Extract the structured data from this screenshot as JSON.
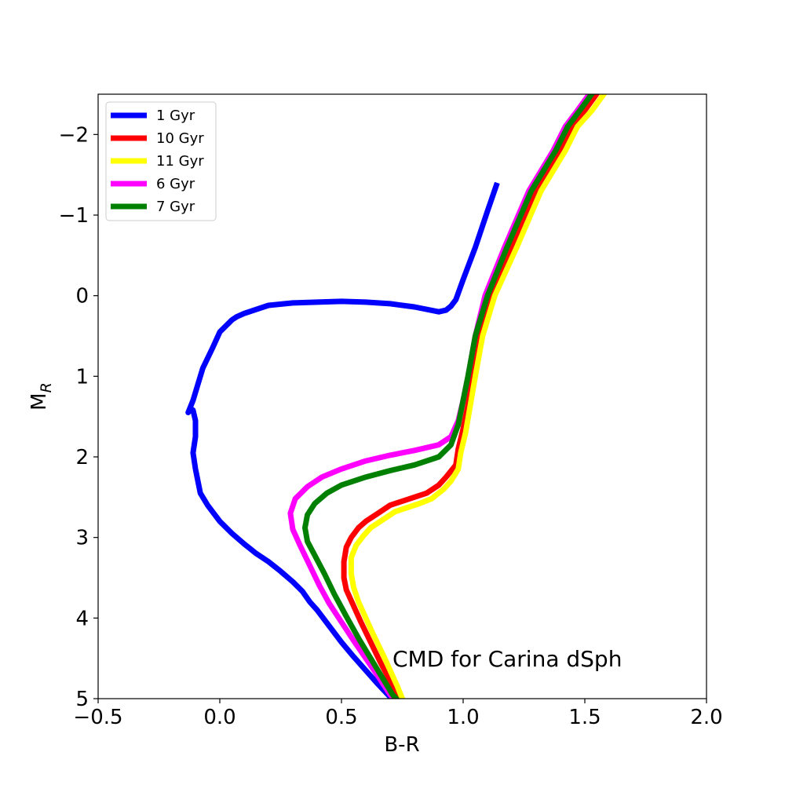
{
  "chart_data": {
    "type": "line",
    "title": "",
    "xlabel": "B-R",
    "ylabel": "M",
    "ylabel_subscript": "R",
    "xlim": [
      -0.5,
      2.0
    ],
    "ylim": [
      5,
      -2.5
    ],
    "y_inverted": true,
    "grid": false,
    "legend_placement": "top-left",
    "x_ticks": [
      -0.5,
      0.0,
      0.5,
      1.0,
      1.5,
      2.0
    ],
    "x_tick_labels": [
      "−0.5",
      "0.0",
      "0.5",
      "1.0",
      "1.5",
      "2.0"
    ],
    "y_ticks": [
      -2,
      -1,
      0,
      1,
      2,
      3,
      4,
      5
    ],
    "y_tick_labels": [
      "−2",
      "−1",
      "0",
      "1",
      "2",
      "3",
      "4",
      "5"
    ],
    "annotation": "CMD for Carina dSph",
    "series": [
      {
        "name": "1 Gyr",
        "color": "#0000ff",
        "x": [
          1.14,
          1.1,
          1.05,
          1.0,
          0.97,
          0.95,
          0.93,
          0.9,
          0.8,
          0.7,
          0.6,
          0.5,
          0.4,
          0.3,
          0.2,
          0.1,
          0.07,
          0.05,
          0.0,
          -0.03,
          -0.07,
          -0.09,
          -0.11,
          -0.13,
          -0.12,
          -0.11,
          -0.1,
          -0.1,
          -0.11,
          -0.1,
          -0.08,
          -0.05,
          0.0,
          0.05,
          0.1,
          0.15,
          0.2,
          0.25,
          0.3,
          0.34,
          0.37,
          0.4,
          0.45,
          0.5,
          0.55,
          0.6,
          0.65,
          0.7,
          0.72
        ],
        "y": [
          -1.4,
          -1.05,
          -0.6,
          -0.2,
          0.05,
          0.13,
          0.18,
          0.2,
          0.14,
          0.1,
          0.08,
          0.07,
          0.08,
          0.09,
          0.12,
          0.22,
          0.26,
          0.3,
          0.45,
          0.65,
          0.9,
          1.1,
          1.3,
          1.45,
          1.4,
          1.42,
          1.55,
          1.75,
          1.95,
          2.15,
          2.45,
          2.6,
          2.8,
          2.95,
          3.08,
          3.2,
          3.3,
          3.42,
          3.55,
          3.67,
          3.8,
          3.9,
          4.1,
          4.3,
          4.48,
          4.65,
          4.82,
          4.98,
          5.05
        ]
      },
      {
        "name": "10 Gyr",
        "color": "#ff0000",
        "x": [
          1.56,
          1.5,
          1.45,
          1.4,
          1.3,
          1.2,
          1.12,
          1.07,
          1.04,
          1.02,
          1.0,
          0.98,
          0.97,
          0.93,
          0.9,
          0.85,
          0.8,
          0.7,
          0.65,
          0.6,
          0.57,
          0.54,
          0.52,
          0.51,
          0.51,
          0.52,
          0.55,
          0.58,
          0.62,
          0.66,
          0.7,
          0.73,
          0.75
        ],
        "y": [
          -2.55,
          -2.3,
          -2.1,
          -1.8,
          -1.3,
          -0.6,
          0.0,
          0.5,
          1.0,
          1.35,
          1.65,
          1.9,
          2.1,
          2.25,
          2.35,
          2.45,
          2.5,
          2.6,
          2.7,
          2.8,
          2.88,
          3.0,
          3.12,
          3.3,
          3.5,
          3.65,
          3.85,
          4.05,
          4.3,
          4.55,
          4.78,
          4.95,
          5.05
        ]
      },
      {
        "name": "11 Gyr",
        "color": "#ffff00",
        "x": [
          1.59,
          1.53,
          1.47,
          1.42,
          1.32,
          1.22,
          1.13,
          1.08,
          1.05,
          1.03,
          1.01,
          0.99,
          0.98,
          0.95,
          0.92,
          0.87,
          0.82,
          0.72,
          0.67,
          0.62,
          0.59,
          0.56,
          0.54,
          0.54,
          0.55,
          0.57,
          0.6,
          0.63,
          0.67,
          0.7,
          0.73,
          0.75,
          0.76
        ],
        "y": [
          -2.55,
          -2.3,
          -2.1,
          -1.8,
          -1.3,
          -0.6,
          0.0,
          0.5,
          1.0,
          1.35,
          1.7,
          1.95,
          2.15,
          2.3,
          2.4,
          2.52,
          2.58,
          2.68,
          2.78,
          2.88,
          2.98,
          3.1,
          3.25,
          3.45,
          3.62,
          3.8,
          4.0,
          4.2,
          4.45,
          4.65,
          4.85,
          5.0,
          5.05
        ]
      },
      {
        "name": "6 Gyr",
        "color": "#ff00ff",
        "x": [
          1.53,
          1.47,
          1.42,
          1.37,
          1.27,
          1.17,
          1.09,
          1.05,
          1.02,
          1.0,
          0.98,
          0.95,
          0.9,
          0.8,
          0.7,
          0.6,
          0.5,
          0.42,
          0.36,
          0.31,
          0.29,
          0.3,
          0.33,
          0.37,
          0.41,
          0.45,
          0.5,
          0.55,
          0.6,
          0.65,
          0.7,
          0.73
        ],
        "y": [
          -2.55,
          -2.3,
          -2.1,
          -1.8,
          -1.3,
          -0.6,
          0.0,
          0.5,
          1.0,
          1.3,
          1.55,
          1.75,
          1.85,
          1.92,
          1.98,
          2.05,
          2.15,
          2.25,
          2.37,
          2.52,
          2.7,
          2.9,
          3.1,
          3.35,
          3.6,
          3.82,
          4.05,
          4.28,
          4.5,
          4.72,
          4.95,
          5.05
        ]
      },
      {
        "name": "7 Gyr",
        "color": "#008000",
        "x": [
          1.54,
          1.48,
          1.43,
          1.38,
          1.28,
          1.18,
          1.1,
          1.05,
          1.02,
          1.0,
          0.98,
          0.95,
          0.9,
          0.8,
          0.7,
          0.6,
          0.5,
          0.44,
          0.39,
          0.36,
          0.35,
          0.36,
          0.39,
          0.43,
          0.47,
          0.52,
          0.57,
          0.62,
          0.67,
          0.71,
          0.74
        ],
        "y": [
          -2.55,
          -2.3,
          -2.1,
          -1.8,
          -1.3,
          -0.6,
          0.0,
          0.5,
          1.0,
          1.3,
          1.6,
          1.85,
          2.0,
          2.1,
          2.17,
          2.25,
          2.35,
          2.45,
          2.58,
          2.72,
          2.88,
          3.05,
          3.22,
          3.45,
          3.7,
          3.98,
          4.25,
          4.5,
          4.75,
          4.95,
          5.05
        ]
      }
    ]
  }
}
